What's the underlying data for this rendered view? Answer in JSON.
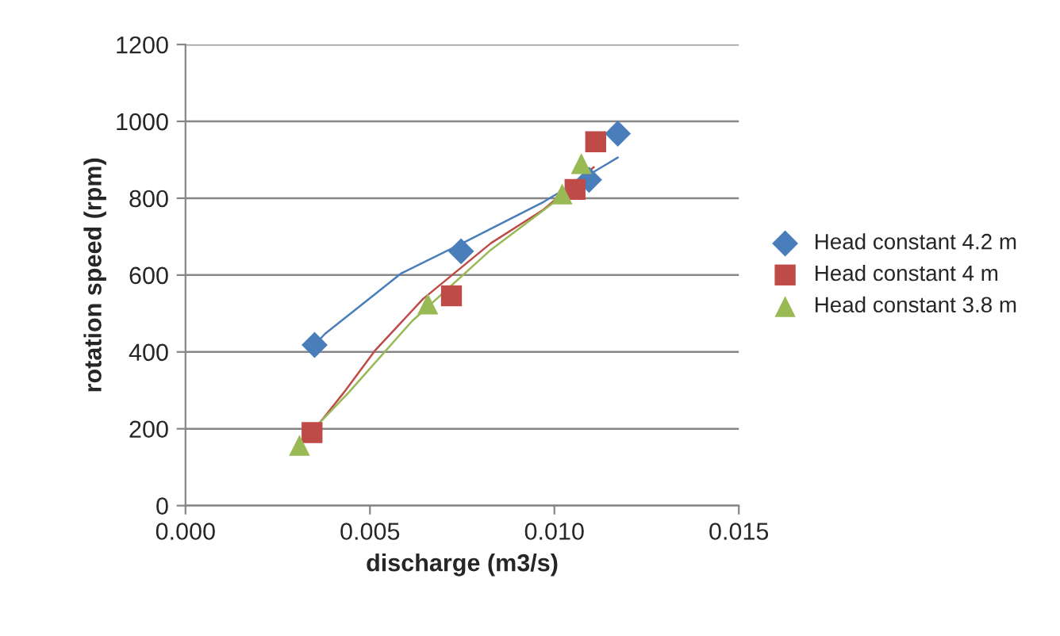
{
  "chart_data": {
    "type": "scatter",
    "xlabel": "discharge (m3/s)",
    "ylabel": "rotation speed (rpm)",
    "xlim": [
      0,
      0.015
    ],
    "xticks": [
      {
        "value": 0,
        "label": "0.000"
      },
      {
        "value": 0.005,
        "label": "0.005"
      },
      {
        "value": 0.01,
        "label": "0.010"
      },
      {
        "value": 0.015,
        "label": "0.015"
      }
    ],
    "ylim": [
      0,
      1200
    ],
    "yticks": [
      0,
      200,
      400,
      600,
      800,
      1000,
      1200
    ],
    "grid": "y",
    "legend": "right",
    "series": [
      {
        "name": "Head constant 4.2 m",
        "marker": "diamond",
        "color": "#4a7ebb",
        "x": [
          0.0035,
          0.00747,
          0.01094,
          0.01172
        ],
        "values": [
          418,
          662,
          848,
          968
        ]
      },
      {
        "name": "Head constant 4 m",
        "marker": "square",
        "color": "#be4b48",
        "x": [
          0.00343,
          0.00721,
          0.01056,
          0.01112
        ],
        "values": [
          190,
          546,
          823,
          947
        ]
      },
      {
        "name": "Head constant 3.8 m",
        "marker": "triangle",
        "color": "#98b954",
        "x": [
          0.00309,
          0.00657,
          0.01021,
          0.01073
        ],
        "values": [
          157,
          525,
          811,
          890
        ]
      },
      {
        "type": "line",
        "color": "#4a7ebb",
        "x": [
          0.0035,
          0.00378,
          0.00584,
          0.00751,
          0.0097,
          0.01172
        ],
        "values": [
          418,
          447,
          604,
          683,
          790,
          906
        ]
      },
      {
        "type": "line",
        "color": "#be4b48",
        "x": [
          0.00326,
          0.00429,
          0.00515,
          0.00644,
          0.00828,
          0.0097,
          0.01107
        ],
        "values": [
          170,
          294,
          405,
          538,
          683,
          770,
          881
        ]
      },
      {
        "type": "line",
        "color": "#98b954",
        "x": [
          0.00313,
          0.00442,
          0.00614,
          0.00828,
          0.01,
          0.01099
        ],
        "values": [
          165,
          294,
          480,
          666,
          790,
          873
        ]
      }
    ]
  }
}
